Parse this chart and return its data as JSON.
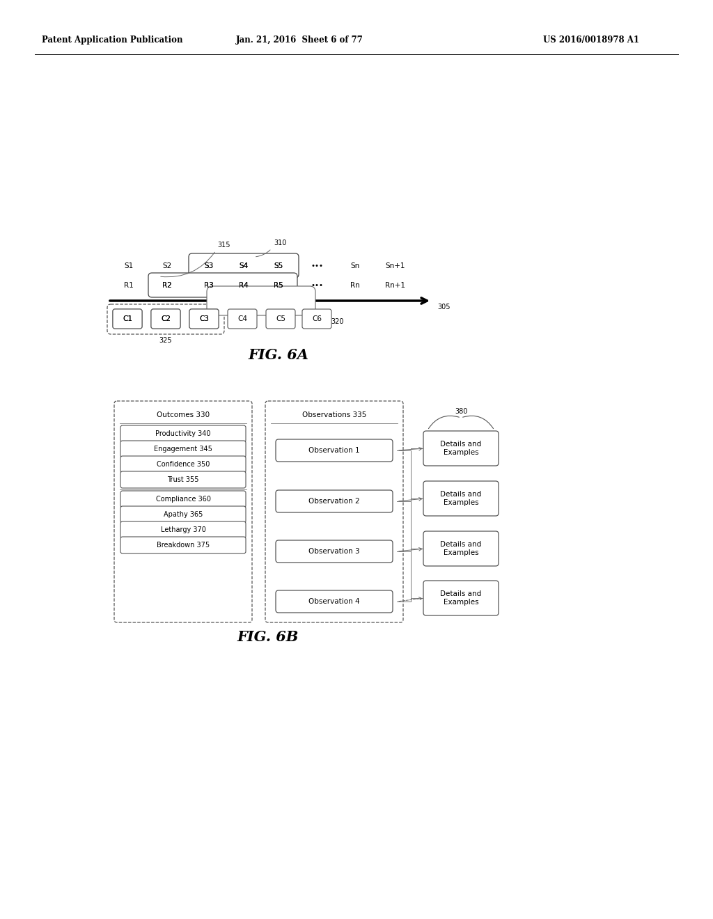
{
  "header_left": "Patent Application Publication",
  "header_mid": "Jan. 21, 2016  Sheet 6 of 77",
  "header_right": "US 2016/0018978 A1",
  "fig6a_label": "FIG. 6A",
  "fig6b_label": "FIG. 6B",
  "s_labels": [
    "S1",
    "S2",
    "S3",
    "S4",
    "S5",
    "•••",
    "Sn",
    "Sn+1"
  ],
  "r_labels": [
    "R1",
    "R2",
    "R3",
    "R4",
    "R5",
    "•••",
    "Rn",
    "Rn+1"
  ],
  "c_labels": [
    "C1",
    "C2",
    "C3",
    "C4",
    "C5",
    "C6"
  ],
  "label_315": "315",
  "label_310": "310",
  "label_305": "305",
  "label_320": "320",
  "label_325": "325",
  "label_380": "380",
  "outcomes_title": "Outcomes 330",
  "outcomes_items": [
    "Productivity 340",
    "Engagement 345",
    "Confidence 350",
    "Trust 355",
    "Compliance 360",
    "Apathy 365",
    "Lethargy 370",
    "Breakdown 375"
  ],
  "observations_title": "Observations 335",
  "observations_items": [
    "Observation 1",
    "Observation 2",
    "Observation 3",
    "Observation 4"
  ],
  "details_label": "Details and\nExamples",
  "bg_color": "#ffffff",
  "edge_color": "#555555",
  "text_color": "#000000"
}
